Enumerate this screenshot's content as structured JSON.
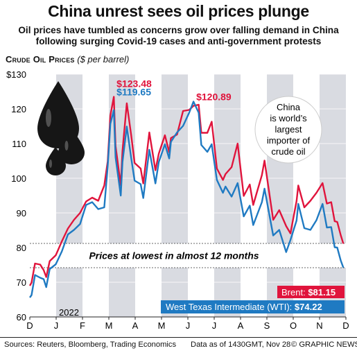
{
  "header": {
    "title": "China unrest sees oil prices plunge",
    "subtitle": "Oil prices have tumbled as concerns grow over falling demand in China following surging Covid-19 cases and anti-government protests"
  },
  "chart_heading": {
    "label": "Crude Oil Prices",
    "unit": "($ per barrel)"
  },
  "colors": {
    "brent": "#e0143c",
    "wti": "#1f7ac2",
    "band": "#d9dbe1",
    "drop_bg": "#e6e6e6"
  },
  "chart_data": {
    "type": "line",
    "title": "Crude Oil Prices",
    "ylabel": "$ per barrel",
    "ylim": [
      60,
      130
    ],
    "yticks": [
      "$130",
      "120",
      "110",
      "100",
      "90",
      "80",
      "70",
      "60"
    ],
    "year_label": "2022",
    "months": [
      "D",
      "J",
      "F",
      "M",
      "A",
      "M",
      "J",
      "J",
      "A",
      "S",
      "O",
      "N",
      "D"
    ],
    "x_range": [
      "2021-12-01",
      "2022-12-01"
    ],
    "series": [
      {
        "name": "Brent",
        "end_value": 81.15,
        "points": [
          [
            "2021-12-01",
            69.0
          ],
          [
            "2021-12-03",
            69.9
          ],
          [
            "2021-12-07",
            75.4
          ],
          [
            "2021-12-13",
            75.1
          ],
          [
            "2021-12-17",
            73.5
          ],
          [
            "2021-12-20",
            71.5
          ],
          [
            "2021-12-24",
            76.1
          ],
          [
            "2021-12-31",
            77.8
          ],
          [
            "2022-01-07",
            81.8
          ],
          [
            "2022-01-14",
            85.5
          ],
          [
            "2022-01-21",
            88.0
          ],
          [
            "2022-01-28",
            90.0
          ],
          [
            "2022-02-04",
            93.3
          ],
          [
            "2022-02-11",
            94.4
          ],
          [
            "2022-02-18",
            93.5
          ],
          [
            "2022-02-25",
            97.9
          ],
          [
            "2022-03-01",
            104.9
          ],
          [
            "2022-03-04",
            118.1
          ],
          [
            "2022-03-08",
            123.48
          ],
          [
            "2022-03-10",
            109.3
          ],
          [
            "2022-03-16",
            98.0
          ],
          [
            "2022-03-18",
            107.9
          ],
          [
            "2022-03-23",
            121.6
          ],
          [
            "2022-03-28",
            112.5
          ],
          [
            "2022-04-01",
            104.4
          ],
          [
            "2022-04-08",
            102.8
          ],
          [
            "2022-04-11",
            98.5
          ],
          [
            "2022-04-18",
            113.2
          ],
          [
            "2022-04-25",
            102.3
          ],
          [
            "2022-04-29",
            107.1
          ],
          [
            "2022-05-06",
            112.4
          ],
          [
            "2022-05-11",
            107.5
          ],
          [
            "2022-05-13",
            111.6
          ],
          [
            "2022-05-20",
            112.6
          ],
          [
            "2022-05-27",
            119.4
          ],
          [
            "2022-06-03",
            119.7
          ],
          [
            "2022-06-08",
            120.89
          ],
          [
            "2022-06-14",
            121.2
          ],
          [
            "2022-06-17",
            113.1
          ],
          [
            "2022-06-24",
            113.1
          ],
          [
            "2022-06-29",
            116.3
          ],
          [
            "2022-07-05",
            102.8
          ],
          [
            "2022-07-12",
            99.5
          ],
          [
            "2022-07-15",
            101.2
          ],
          [
            "2022-07-22",
            103.2
          ],
          [
            "2022-07-29",
            110.0
          ],
          [
            "2022-08-05",
            94.9
          ],
          [
            "2022-08-12",
            98.2
          ],
          [
            "2022-08-16",
            92.3
          ],
          [
            "2022-08-26",
            100.9
          ],
          [
            "2022-08-29",
            105.1
          ],
          [
            "2022-09-08",
            88.0
          ],
          [
            "2022-09-15",
            90.8
          ],
          [
            "2022-09-23",
            86.2
          ],
          [
            "2022-09-28",
            84.1
          ],
          [
            "2022-10-05",
            93.4
          ],
          [
            "2022-10-07",
            97.9
          ],
          [
            "2022-10-14",
            91.6
          ],
          [
            "2022-10-21",
            93.5
          ],
          [
            "2022-10-28",
            95.8
          ],
          [
            "2022-11-04",
            98.6
          ],
          [
            "2022-11-09",
            92.7
          ],
          [
            "2022-11-14",
            93.1
          ],
          [
            "2022-11-18",
            87.6
          ],
          [
            "2022-11-21",
            87.4
          ],
          [
            "2022-11-25",
            83.6
          ],
          [
            "2022-11-28",
            81.15
          ]
        ]
      },
      {
        "name": "West Texas Intermediate (WTI)",
        "end_value": 74.22,
        "points": [
          [
            "2021-12-01",
            65.6
          ],
          [
            "2021-12-03",
            66.3
          ],
          [
            "2021-12-07",
            72.1
          ],
          [
            "2021-12-13",
            71.3
          ],
          [
            "2021-12-17",
            70.9
          ],
          [
            "2021-12-20",
            68.6
          ],
          [
            "2021-12-24",
            73.8
          ],
          [
            "2021-12-31",
            75.2
          ],
          [
            "2022-01-07",
            78.9
          ],
          [
            "2022-01-14",
            83.8
          ],
          [
            "2022-01-21",
            85.1
          ],
          [
            "2022-01-28",
            86.8
          ],
          [
            "2022-02-04",
            92.3
          ],
          [
            "2022-02-11",
            93.1
          ],
          [
            "2022-02-18",
            91.1
          ],
          [
            "2022-02-25",
            91.6
          ],
          [
            "2022-03-01",
            103.4
          ],
          [
            "2022-03-04",
            115.7
          ],
          [
            "2022-03-08",
            119.65
          ],
          [
            "2022-03-10",
            106.0
          ],
          [
            "2022-03-16",
            95.0
          ],
          [
            "2022-03-18",
            104.7
          ],
          [
            "2022-03-23",
            114.9
          ],
          [
            "2022-03-28",
            105.9
          ],
          [
            "2022-04-01",
            99.3
          ],
          [
            "2022-04-08",
            98.3
          ],
          [
            "2022-04-11",
            94.3
          ],
          [
            "2022-04-18",
            108.2
          ],
          [
            "2022-04-25",
            98.5
          ],
          [
            "2022-04-29",
            104.7
          ],
          [
            "2022-05-06",
            109.8
          ],
          [
            "2022-05-11",
            105.7
          ],
          [
            "2022-05-13",
            110.5
          ],
          [
            "2022-05-20",
            113.2
          ],
          [
            "2022-05-27",
            115.1
          ],
          [
            "2022-06-03",
            118.9
          ],
          [
            "2022-06-08",
            122.1
          ],
          [
            "2022-06-14",
            118.9
          ],
          [
            "2022-06-17",
            109.6
          ],
          [
            "2022-06-24",
            107.6
          ],
          [
            "2022-06-29",
            109.8
          ],
          [
            "2022-07-05",
            99.5
          ],
          [
            "2022-07-12",
            95.8
          ],
          [
            "2022-07-15",
            97.6
          ],
          [
            "2022-07-22",
            94.7
          ],
          [
            "2022-07-29",
            98.6
          ],
          [
            "2022-08-05",
            89.0
          ],
          [
            "2022-08-12",
            92.1
          ],
          [
            "2022-08-16",
            86.5
          ],
          [
            "2022-08-26",
            93.1
          ],
          [
            "2022-08-29",
            97.0
          ],
          [
            "2022-09-08",
            83.5
          ],
          [
            "2022-09-15",
            85.1
          ],
          [
            "2022-09-23",
            78.7
          ],
          [
            "2022-09-28",
            82.2
          ],
          [
            "2022-10-05",
            87.8
          ],
          [
            "2022-10-07",
            92.6
          ],
          [
            "2022-10-14",
            85.6
          ],
          [
            "2022-10-21",
            85.1
          ],
          [
            "2022-10-28",
            87.9
          ],
          [
            "2022-11-04",
            92.6
          ],
          [
            "2022-11-09",
            85.8
          ],
          [
            "2022-11-14",
            85.9
          ],
          [
            "2022-11-18",
            80.1
          ],
          [
            "2022-11-21",
            80.0
          ],
          [
            "2022-11-25",
            76.3
          ],
          [
            "2022-11-28",
            74.22
          ]
        ]
      }
    ],
    "annotations": [
      {
        "text": "$123.48",
        "date": "2022-03-08",
        "value": 123.48,
        "series": "Brent"
      },
      {
        "text": "$119.65",
        "date": "2022-03-08",
        "value": 119.65,
        "series": "WTI"
      },
      {
        "text": "$120.89",
        "date": "2022-06-08",
        "value": 120.89,
        "series": "Brent"
      }
    ],
    "highlight_band": {
      "text": "Prices at lowest in almost 12 months",
      "from": 74.2,
      "to": 81.2
    },
    "callout": {
      "lines": [
        "China",
        "is world’s",
        "largest",
        "importer of",
        "crude oil"
      ]
    },
    "end_labels": {
      "brent": {
        "name": "Brent:",
        "value": "$81.15"
      },
      "wti": {
        "name": "West Texas Intermediate (WTI):",
        "value": "$74.22"
      }
    }
  },
  "footer": {
    "sources": "Sources: Reuters, Bloomberg, Trading Economics",
    "as_of": "Data as of 1430GMT, Nov 28",
    "credit": "© GRAPHIC NEWS"
  }
}
